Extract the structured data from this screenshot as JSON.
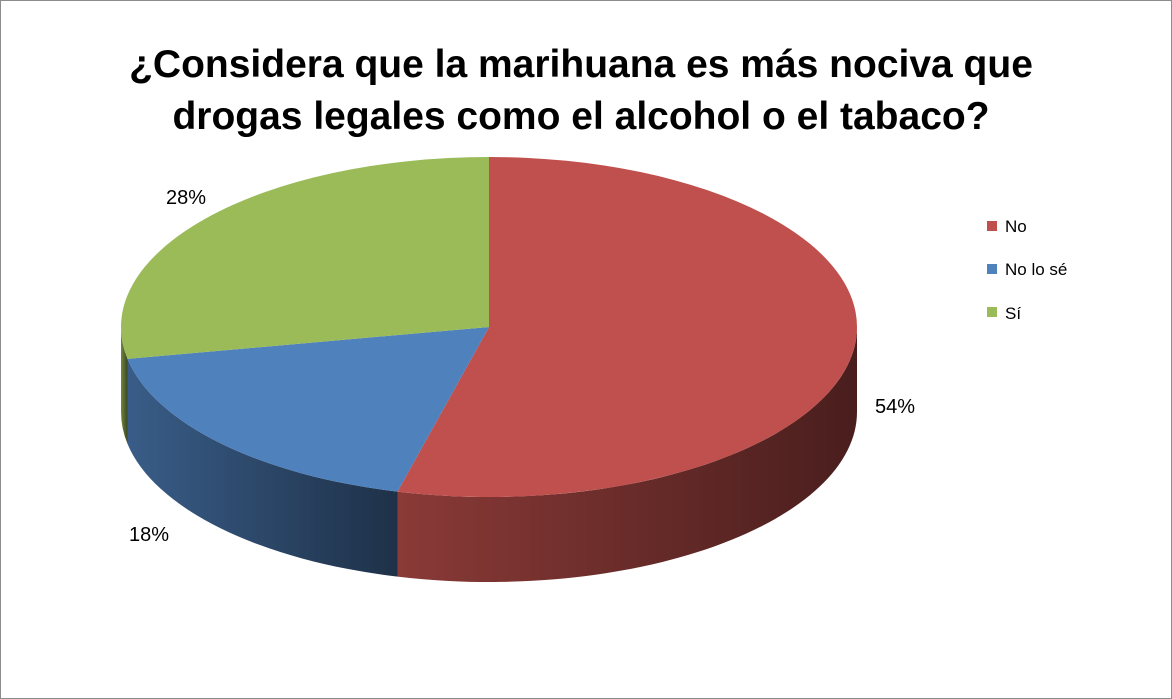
{
  "chart_data": {
    "type": "pie",
    "title_lines": [
      "¿Considera que la marihuana es más nociva que",
      "drogas legales como el alcohol o el tabaco?"
    ],
    "slices": [
      {
        "name": "No",
        "value": 54,
        "label": "54%",
        "color": "#c0504d"
      },
      {
        "name": "No lo sé",
        "value": 18,
        "label": "18%",
        "color": "#4f81bd"
      },
      {
        "name": "Sí",
        "value": 28,
        "label": "28%",
        "color": "#9bbb59"
      }
    ],
    "legend_position": "right",
    "style": "3d"
  }
}
